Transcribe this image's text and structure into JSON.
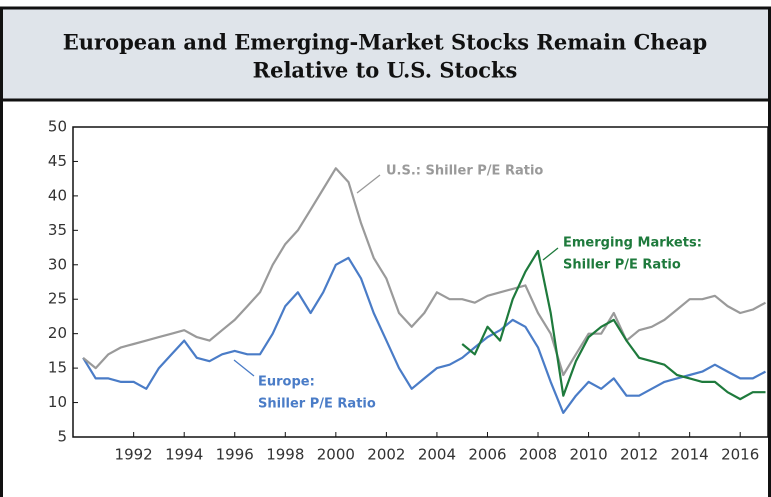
{
  "chart_data": {
    "type": "line",
    "title": [
      "European and Emerging-Market Stocks Remain Cheap",
      "Relative to U.S. Stocks"
    ],
    "x": [
      1990,
      1990.5,
      1991,
      1991.5,
      1992,
      1992.5,
      1993,
      1993.5,
      1994,
      1994.5,
      1995,
      1995.5,
      1996,
      1996.5,
      1997,
      1997.5,
      1998,
      1998.5,
      1999,
      1999.5,
      2000,
      2000.5,
      2001,
      2001.5,
      2002,
      2002.5,
      2003,
      2003.5,
      2004,
      2004.5,
      2005,
      2005.5,
      2006,
      2006.5,
      2007,
      2007.5,
      2008,
      2008.5,
      2009,
      2009.5,
      2010,
      2010.5,
      2011,
      2011.5,
      2012,
      2012.5,
      2013,
      2013.5,
      2014,
      2014.5,
      2015,
      2015.5,
      2016,
      2016.5,
      2017
    ],
    "series": [
      {
        "label": [
          "U.S.: Shiller P/E Ratio"
        ],
        "color": "#9a9a9a",
        "values": [
          16.5,
          15,
          17,
          18,
          18.5,
          19,
          19.5,
          20,
          20.5,
          19.5,
          19,
          20.5,
          22,
          24,
          26,
          30,
          33,
          35,
          38,
          41,
          44,
          42,
          36,
          31,
          28,
          23,
          21,
          23,
          26,
          25,
          25,
          24.5,
          25.5,
          26,
          26.5,
          27,
          23,
          20,
          14,
          17,
          20,
          20,
          23,
          19,
          20.5,
          21,
          22,
          23.5,
          25,
          25,
          25.5,
          24,
          23,
          23.5,
          24.5
        ]
      },
      {
        "label": [
          "Europe:",
          "Shiller P/E Ratio"
        ],
        "color": "#4a7cc7",
        "values": [
          16.5,
          13.5,
          13.5,
          13,
          13,
          12,
          15,
          17,
          19,
          16.5,
          16,
          17,
          17.5,
          17,
          17,
          20,
          24,
          26,
          23,
          26,
          30,
          31,
          28,
          23,
          19,
          15,
          12,
          13.5,
          15,
          15.5,
          16.5,
          18,
          19.5,
          20.5,
          22,
          21,
          18,
          13,
          8.5,
          11,
          13,
          12,
          13.5,
          11,
          11,
          12,
          13,
          13.5,
          14,
          14.5,
          15.5,
          14.5,
          13.5,
          13.5,
          14.5
        ]
      },
      {
        "label": [
          "Emerging Markets:",
          "Shiller P/E Ratio"
        ],
        "color": "#1e7a3c",
        "values": [
          null,
          null,
          null,
          null,
          null,
          null,
          null,
          null,
          null,
          null,
          null,
          null,
          null,
          null,
          null,
          null,
          null,
          null,
          null,
          null,
          null,
          null,
          null,
          null,
          null,
          null,
          null,
          null,
          null,
          null,
          18.5,
          17,
          21,
          19,
          25,
          29,
          32,
          23,
          11,
          16,
          19.5,
          21,
          22,
          19,
          16.5,
          16,
          15.5,
          14,
          13.5,
          13,
          13,
          11.5,
          10.5,
          11.5,
          11.5
        ]
      }
    ],
    "xlim": [
      1989.6,
      2017.1
    ],
    "xticks": [
      1992,
      1994,
      1996,
      1998,
      2000,
      2002,
      2004,
      2006,
      2008,
      2010,
      2012,
      2014,
      2016
    ],
    "ylim": [
      5,
      50
    ],
    "yticks": [
      5,
      10,
      15,
      20,
      25,
      30,
      35,
      40,
      45,
      50
    ]
  }
}
